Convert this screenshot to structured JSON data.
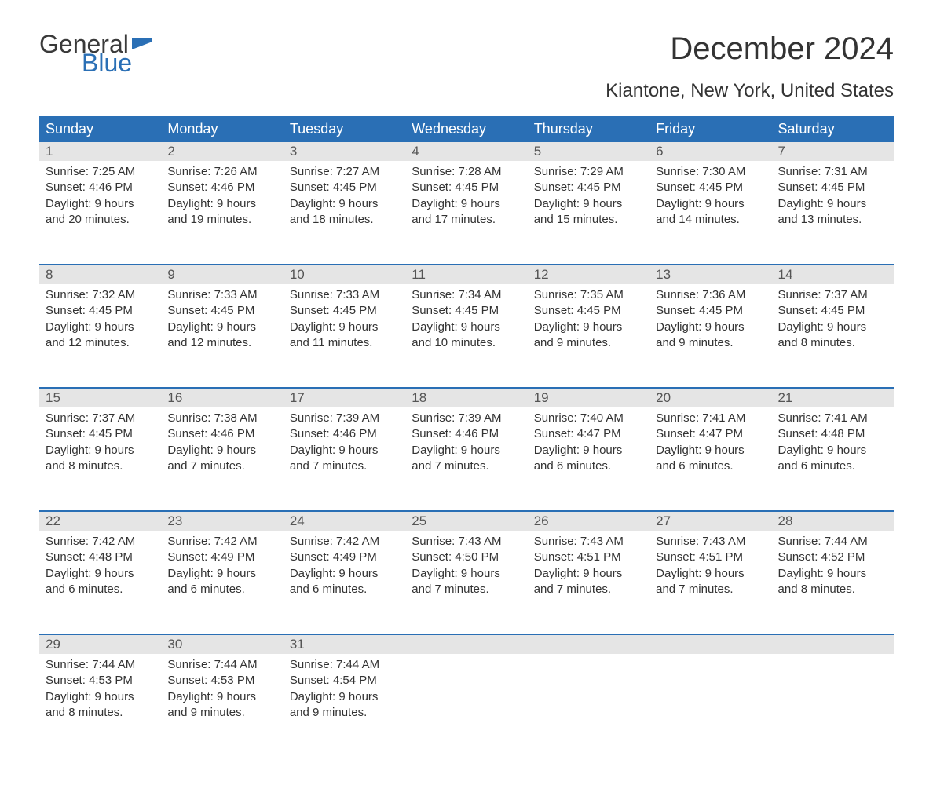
{
  "brand": {
    "word1": "General",
    "word2": "Blue",
    "flag_color": "#2a6fb5"
  },
  "title": "December 2024",
  "location": "Kiantone, New York, United States",
  "colors": {
    "header_bg": "#2a6fb5",
    "header_text": "#ffffff",
    "daynum_bg": "#e5e5e5",
    "daynum_text": "#555555",
    "body_text": "#333333",
    "page_bg": "#ffffff"
  },
  "fonts": {
    "title_pt": 40,
    "location_pt": 24,
    "header_pt": 18,
    "body_pt": 15,
    "daynum_pt": 17
  },
  "day_labels": [
    "Sunday",
    "Monday",
    "Tuesday",
    "Wednesday",
    "Thursday",
    "Friday",
    "Saturday"
  ],
  "weeks": [
    [
      {
        "n": "1",
        "sunrise": "Sunrise: 7:25 AM",
        "sunset": "Sunset: 4:46 PM",
        "daylight": "Daylight: 9 hours and 20 minutes."
      },
      {
        "n": "2",
        "sunrise": "Sunrise: 7:26 AM",
        "sunset": "Sunset: 4:46 PM",
        "daylight": "Daylight: 9 hours and 19 minutes."
      },
      {
        "n": "3",
        "sunrise": "Sunrise: 7:27 AM",
        "sunset": "Sunset: 4:45 PM",
        "daylight": "Daylight: 9 hours and 18 minutes."
      },
      {
        "n": "4",
        "sunrise": "Sunrise: 7:28 AM",
        "sunset": "Sunset: 4:45 PM",
        "daylight": "Daylight: 9 hours and 17 minutes."
      },
      {
        "n": "5",
        "sunrise": "Sunrise: 7:29 AM",
        "sunset": "Sunset: 4:45 PM",
        "daylight": "Daylight: 9 hours and 15 minutes."
      },
      {
        "n": "6",
        "sunrise": "Sunrise: 7:30 AM",
        "sunset": "Sunset: 4:45 PM",
        "daylight": "Daylight: 9 hours and 14 minutes."
      },
      {
        "n": "7",
        "sunrise": "Sunrise: 7:31 AM",
        "sunset": "Sunset: 4:45 PM",
        "daylight": "Daylight: 9 hours and 13 minutes."
      }
    ],
    [
      {
        "n": "8",
        "sunrise": "Sunrise: 7:32 AM",
        "sunset": "Sunset: 4:45 PM",
        "daylight": "Daylight: 9 hours and 12 minutes."
      },
      {
        "n": "9",
        "sunrise": "Sunrise: 7:33 AM",
        "sunset": "Sunset: 4:45 PM",
        "daylight": "Daylight: 9 hours and 12 minutes."
      },
      {
        "n": "10",
        "sunrise": "Sunrise: 7:33 AM",
        "sunset": "Sunset: 4:45 PM",
        "daylight": "Daylight: 9 hours and 11 minutes."
      },
      {
        "n": "11",
        "sunrise": "Sunrise: 7:34 AM",
        "sunset": "Sunset: 4:45 PM",
        "daylight": "Daylight: 9 hours and 10 minutes."
      },
      {
        "n": "12",
        "sunrise": "Sunrise: 7:35 AM",
        "sunset": "Sunset: 4:45 PM",
        "daylight": "Daylight: 9 hours and 9 minutes."
      },
      {
        "n": "13",
        "sunrise": "Sunrise: 7:36 AM",
        "sunset": "Sunset: 4:45 PM",
        "daylight": "Daylight: 9 hours and 9 minutes."
      },
      {
        "n": "14",
        "sunrise": "Sunrise: 7:37 AM",
        "sunset": "Sunset: 4:45 PM",
        "daylight": "Daylight: 9 hours and 8 minutes."
      }
    ],
    [
      {
        "n": "15",
        "sunrise": "Sunrise: 7:37 AM",
        "sunset": "Sunset: 4:45 PM",
        "daylight": "Daylight: 9 hours and 8 minutes."
      },
      {
        "n": "16",
        "sunrise": "Sunrise: 7:38 AM",
        "sunset": "Sunset: 4:46 PM",
        "daylight": "Daylight: 9 hours and 7 minutes."
      },
      {
        "n": "17",
        "sunrise": "Sunrise: 7:39 AM",
        "sunset": "Sunset: 4:46 PM",
        "daylight": "Daylight: 9 hours and 7 minutes."
      },
      {
        "n": "18",
        "sunrise": "Sunrise: 7:39 AM",
        "sunset": "Sunset: 4:46 PM",
        "daylight": "Daylight: 9 hours and 7 minutes."
      },
      {
        "n": "19",
        "sunrise": "Sunrise: 7:40 AM",
        "sunset": "Sunset: 4:47 PM",
        "daylight": "Daylight: 9 hours and 6 minutes."
      },
      {
        "n": "20",
        "sunrise": "Sunrise: 7:41 AM",
        "sunset": "Sunset: 4:47 PM",
        "daylight": "Daylight: 9 hours and 6 minutes."
      },
      {
        "n": "21",
        "sunrise": "Sunrise: 7:41 AM",
        "sunset": "Sunset: 4:48 PM",
        "daylight": "Daylight: 9 hours and 6 minutes."
      }
    ],
    [
      {
        "n": "22",
        "sunrise": "Sunrise: 7:42 AM",
        "sunset": "Sunset: 4:48 PM",
        "daylight": "Daylight: 9 hours and 6 minutes."
      },
      {
        "n": "23",
        "sunrise": "Sunrise: 7:42 AM",
        "sunset": "Sunset: 4:49 PM",
        "daylight": "Daylight: 9 hours and 6 minutes."
      },
      {
        "n": "24",
        "sunrise": "Sunrise: 7:42 AM",
        "sunset": "Sunset: 4:49 PM",
        "daylight": "Daylight: 9 hours and 6 minutes."
      },
      {
        "n": "25",
        "sunrise": "Sunrise: 7:43 AM",
        "sunset": "Sunset: 4:50 PM",
        "daylight": "Daylight: 9 hours and 7 minutes."
      },
      {
        "n": "26",
        "sunrise": "Sunrise: 7:43 AM",
        "sunset": "Sunset: 4:51 PM",
        "daylight": "Daylight: 9 hours and 7 minutes."
      },
      {
        "n": "27",
        "sunrise": "Sunrise: 7:43 AM",
        "sunset": "Sunset: 4:51 PM",
        "daylight": "Daylight: 9 hours and 7 minutes."
      },
      {
        "n": "28",
        "sunrise": "Sunrise: 7:44 AM",
        "sunset": "Sunset: 4:52 PM",
        "daylight": "Daylight: 9 hours and 8 minutes."
      }
    ],
    [
      {
        "n": "29",
        "sunrise": "Sunrise: 7:44 AM",
        "sunset": "Sunset: 4:53 PM",
        "daylight": "Daylight: 9 hours and 8 minutes."
      },
      {
        "n": "30",
        "sunrise": "Sunrise: 7:44 AM",
        "sunset": "Sunset: 4:53 PM",
        "daylight": "Daylight: 9 hours and 9 minutes."
      },
      {
        "n": "31",
        "sunrise": "Sunrise: 7:44 AM",
        "sunset": "Sunset: 4:54 PM",
        "daylight": "Daylight: 9 hours and 9 minutes."
      },
      null,
      null,
      null,
      null
    ]
  ]
}
